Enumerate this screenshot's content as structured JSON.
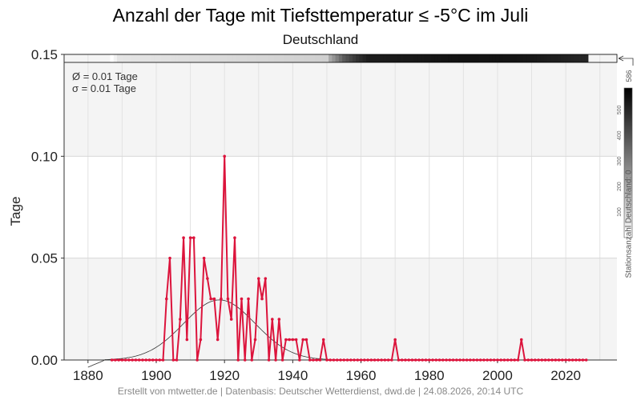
{
  "header": {
    "title": "Anzahl der Tage mit Tiefsttemperatur ≤ -5°C im Juli",
    "subtitle": "Deutschland"
  },
  "stats": {
    "mean": "Ø = 0.01 Tage",
    "sd": "σ = 0.01 Tage"
  },
  "footer": "Erstellt von mtwetter.de | Datenbasis: Deutscher Wetterdienst, dwd.de | 24.08.2026, 20:14 UTC",
  "colorbar": {
    "label": "Stationsanzahl Deutschland: 0",
    "max_label": "586",
    "ticks": [
      "100",
      "200",
      "300",
      "400",
      "500"
    ],
    "max": 586
  },
  "colors": {
    "series": "#dc143c",
    "fit": "#333333",
    "band": "#f4f4f4"
  },
  "chart_data": {
    "type": "line",
    "ylabel": "Tage",
    "xlabel": "",
    "xlim": [
      1873,
      2035
    ],
    "ylim": [
      0,
      0.15
    ],
    "x_ticks": [
      "1880",
      "1900",
      "1920",
      "1940",
      "1960",
      "1980",
      "2000",
      "2020"
    ],
    "y_ticks": [
      "0.00",
      "0.05",
      "0.10",
      "0.15"
    ],
    "series": [
      {
        "x_start": 1887,
        "x_end": 2026,
        "values": [
          0,
          0,
          0,
          0,
          0,
          0,
          0,
          0,
          0,
          0,
          0,
          0,
          0,
          0,
          0,
          0,
          0.03,
          0.05,
          0,
          0,
          0.02,
          0.06,
          0.01,
          0.06,
          0.06,
          0,
          0.01,
          0.05,
          0.04,
          0.03,
          0.03,
          0.01,
          0.03,
          0.1,
          0.03,
          0.02,
          0.06,
          0,
          0.03,
          0,
          0.03,
          0,
          0.01,
          0.04,
          0.03,
          0.04,
          0,
          0.02,
          0,
          0.02,
          0,
          0.01,
          0.01,
          0.01,
          0.01,
          0,
          0.01,
          0.01,
          0,
          0,
          0,
          0,
          0.01,
          0,
          0,
          0,
          0,
          0,
          0,
          0,
          0,
          0,
          0,
          0,
          0,
          0,
          0,
          0,
          0,
          0,
          0,
          0,
          0,
          0.01,
          0,
          0,
          0,
          0,
          0,
          0,
          0,
          0,
          0,
          0,
          0,
          0,
          0,
          0,
          0,
          0,
          0,
          0,
          0,
          0,
          0,
          0,
          0,
          0,
          0,
          0,
          0,
          0,
          0,
          0,
          0,
          0,
          0,
          0,
          0,
          0,
          0.01,
          0,
          0,
          0,
          0,
          0,
          0,
          0,
          0,
          0,
          0,
          0,
          0,
          0,
          0,
          0,
          0,
          0,
          0,
          0
        ]
      }
    ],
    "fit_curve": {
      "type": "normal",
      "x_range": [
        1880,
        2030
      ],
      "mean_year": 1918.5,
      "sd_years": 10.5,
      "peak": 0.0295
    },
    "station_counts": {
      "x_start": 1887,
      "x_end": 2026,
      "anchors": [
        [
          1887,
          0
        ],
        [
          1889,
          60
        ],
        [
          1950,
          110
        ],
        [
          1951,
          200
        ],
        [
          1955,
          380
        ],
        [
          1959,
          470
        ],
        [
          1962,
          520
        ],
        [
          1990,
          545
        ],
        [
          2005,
          540
        ],
        [
          2025,
          500
        ]
      ]
    }
  }
}
